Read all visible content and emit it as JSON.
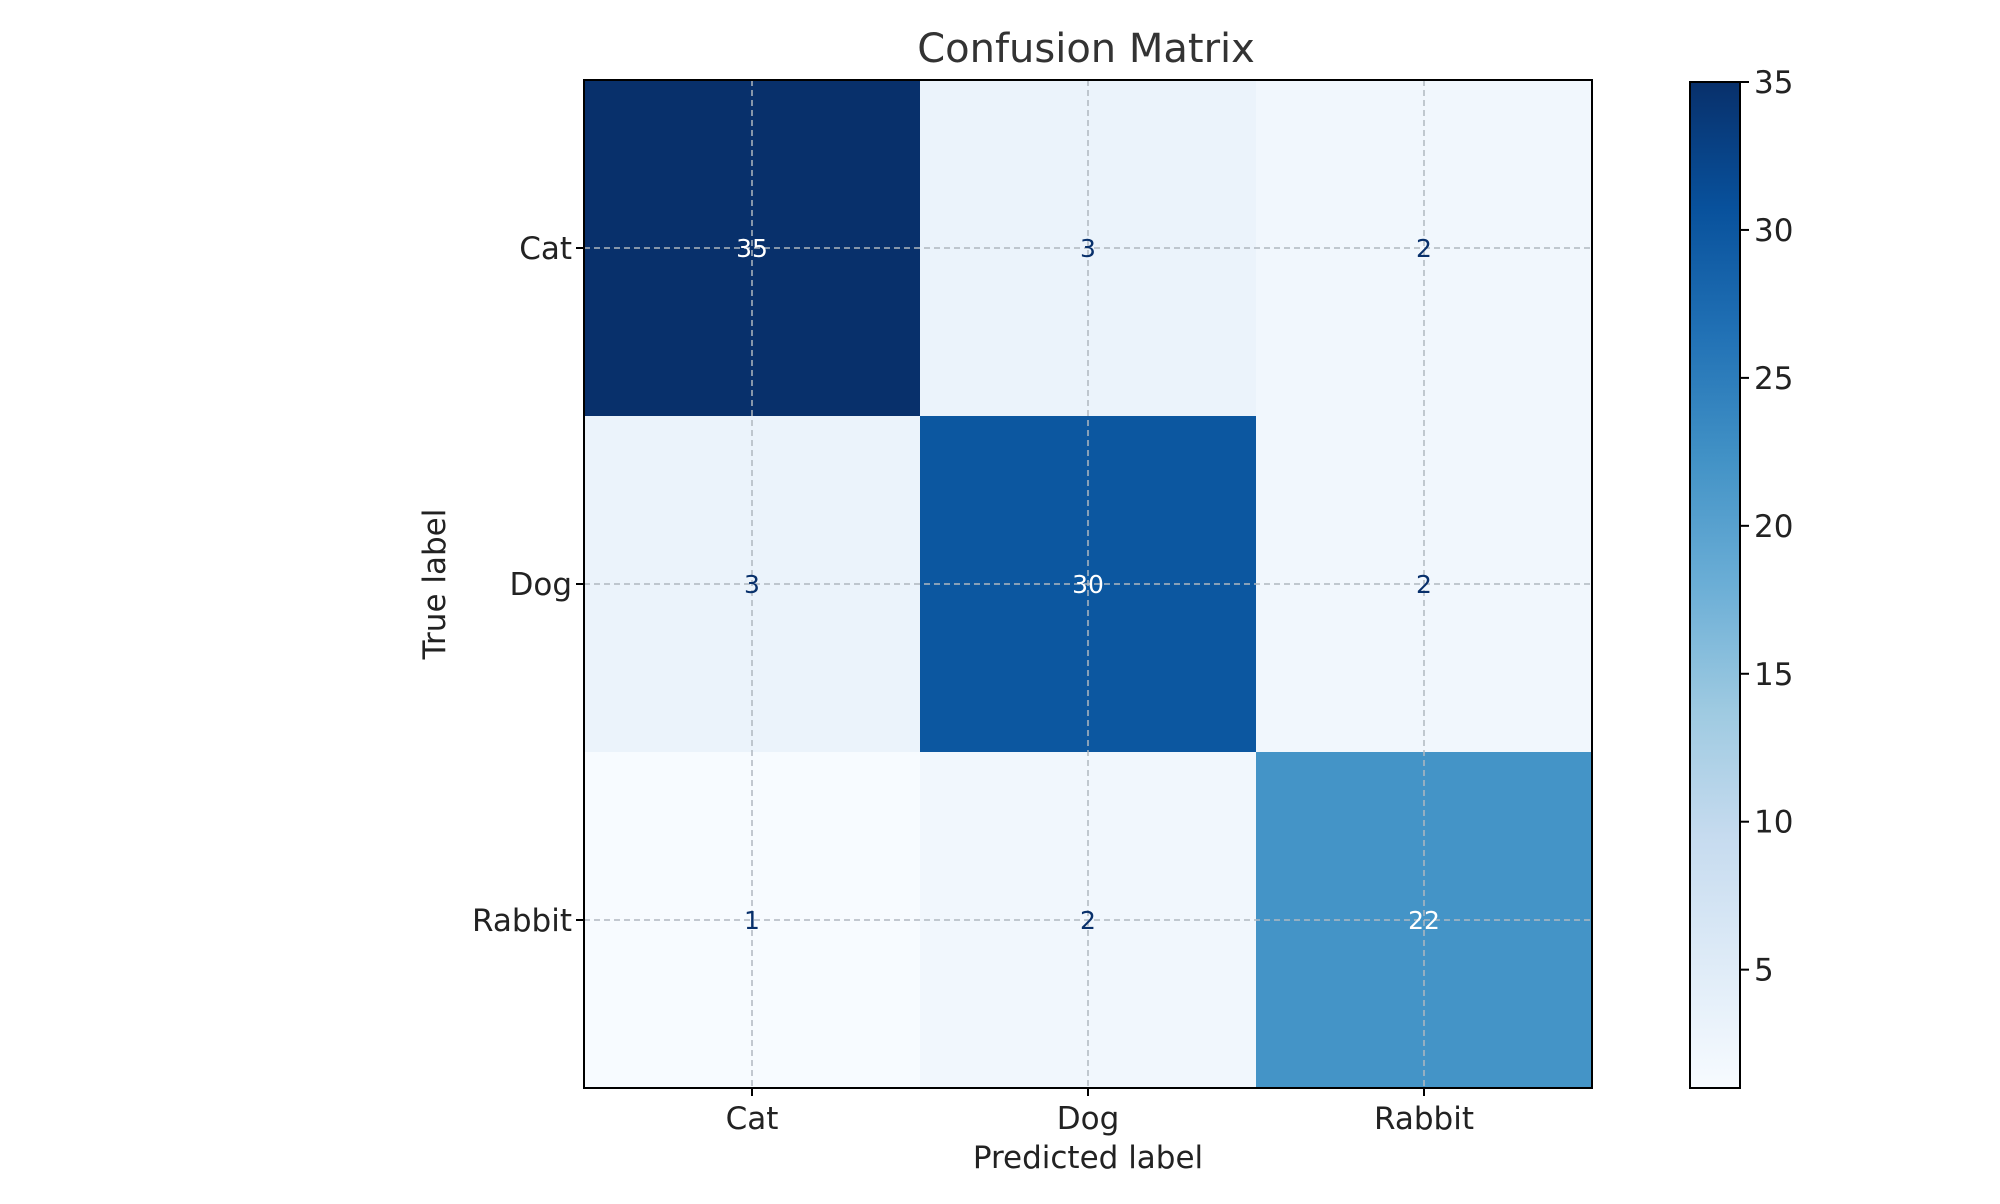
{
  "chart_data": {
    "type": "heatmap",
    "title": "Confusion Matrix",
    "xlabel": "Predicted label",
    "ylabel": "True label",
    "x_categories": [
      "Cat",
      "Dog",
      "Rabbit"
    ],
    "y_categories": [
      "Cat",
      "Dog",
      "Rabbit"
    ],
    "values": [
      [
        35,
        3,
        2
      ],
      [
        3,
        30,
        2
      ],
      [
        1,
        2,
        22
      ]
    ],
    "colormap": "Blues",
    "color_range": [
      1,
      35
    ],
    "colorbar_ticks": [
      5,
      10,
      15,
      20,
      25,
      30,
      35
    ],
    "grid": true
  }
}
